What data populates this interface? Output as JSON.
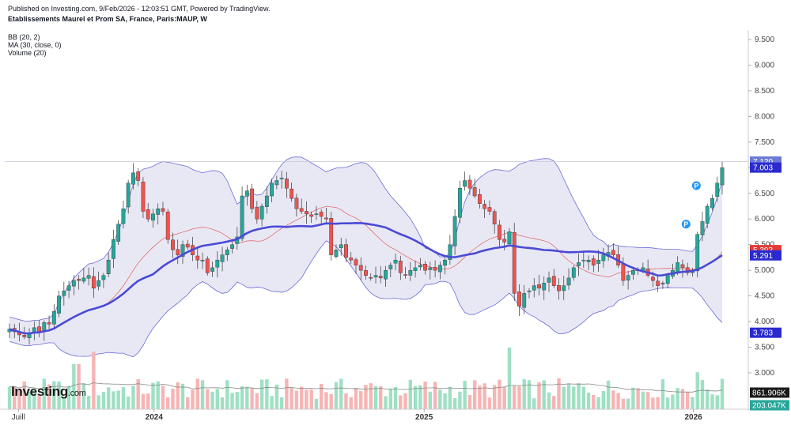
{
  "header": {
    "published": "Published on Investing.com, 9/Feb/2026 - 12:03:51 GMT, Powered by TradingView.",
    "symbol": "Etablissements Maurel et Prom SA, France, Paris:MAUP, W"
  },
  "legend": {
    "bb": "BB (20, 2)",
    "ma": "MA (30, close, 0)",
    "volume": "Volume (20)"
  },
  "logo": {
    "name": "Investing",
    "suffix": ".com"
  },
  "colors": {
    "up": "#26a69a",
    "down": "#ef5350",
    "ma": "#4a4ad6",
    "bb_band": "#6a6ad8",
    "bb_fill": "#e8e8f4",
    "bb_mid": "#e06060",
    "vol_up": "#9fe0c4",
    "vol_down": "#f7b4b4",
    "vol_ma": "#888888"
  },
  "chart_data": {
    "type": "candlestick",
    "y_axis": {
      "min": 3.0,
      "max": 9.5,
      "position": "right",
      "ticks": [
        "3.000",
        "3.500",
        "4.000",
        "4.500",
        "5.000",
        "5.500",
        "6.000",
        "6.500",
        "7.000",
        "7.500",
        "8.000",
        "8.500",
        "9.000",
        "9.500"
      ]
    },
    "x_axis": {
      "labels": [
        {
          "label": "Juill",
          "x": "2023-07-01"
        },
        {
          "label": "2024",
          "x": "2024-01-01"
        },
        {
          "label": "2025",
          "x": "2025-01-01"
        },
        {
          "label": "2026",
          "x": "2026-01-01"
        }
      ]
    },
    "price_labels": [
      {
        "value": "7.120",
        "color": "#6b7bd6"
      },
      {
        "value": "7.003",
        "color": "#2a2ad0"
      },
      {
        "value": "5.393",
        "color": "#e53935"
      },
      {
        "value": "5.291",
        "color": "#2a2ad0"
      },
      {
        "value": "3.783",
        "color": "#2a2ad0"
      }
    ],
    "volume_labels": [
      {
        "value": "861.906K",
        "color": "#1a1a1a"
      },
      {
        "value": "203.047K",
        "color": "#26a69a"
      }
    ],
    "markers": [
      {
        "label": "P",
        "x": "2025-12-22",
        "y": 5.9
      },
      {
        "label": "P",
        "x": "2026-01-05",
        "y": 6.65
      }
    ],
    "close_series": [
      3.85,
      3.8,
      3.74,
      3.7,
      3.75,
      3.88,
      3.8,
      3.98,
      3.95,
      4.2,
      4.5,
      4.6,
      4.7,
      4.8,
      4.8,
      4.85,
      4.9,
      4.65,
      4.8,
      4.9,
      5.2,
      5.6,
      5.9,
      6.2,
      6.7,
      6.9,
      6.75,
      6.15,
      6.0,
      6.1,
      6.2,
      6.15,
      5.6,
      5.4,
      5.3,
      5.5,
      5.45,
      5.3,
      5.2,
      5.2,
      4.95,
      5.05,
      5.2,
      5.3,
      5.4,
      5.5,
      5.65,
      6.45,
      6.55,
      6.2,
      6.0,
      6.25,
      6.45,
      6.7,
      6.75,
      6.8,
      6.6,
      6.4,
      6.2,
      6.15,
      6.1,
      6.05,
      6.1,
      6.05,
      6.0,
      5.3,
      5.4,
      5.5,
      5.25,
      5.2,
      5.1,
      5.0,
      4.9,
      4.85,
      4.9,
      4.85,
      5.0,
      5.1,
      5.2,
      4.95,
      4.9,
      5.0,
      5.05,
      5.1,
      5.0,
      5.05,
      5.0,
      5.1,
      5.2,
      5.5,
      6.05,
      6.6,
      6.75,
      6.6,
      6.45,
      6.3,
      6.2,
      6.15,
      5.9,
      5.6,
      5.55,
      5.75,
      4.55,
      4.3,
      4.55,
      4.6,
      4.7,
      4.65,
      4.75,
      4.85,
      4.7,
      4.6,
      4.7,
      4.85,
      5.05,
      5.15,
      5.2,
      5.2,
      5.1,
      5.2,
      5.3,
      5.35,
      5.3,
      5.1,
      4.8,
      4.9,
      5.0,
      5.0,
      5.05,
      4.9,
      4.8,
      4.7,
      4.75,
      4.9,
      5.0,
      5.15,
      5.05,
      4.95,
      5.0,
      5.7,
      5.95,
      6.25,
      6.4,
      6.7,
      7.0
    ]
  }
}
